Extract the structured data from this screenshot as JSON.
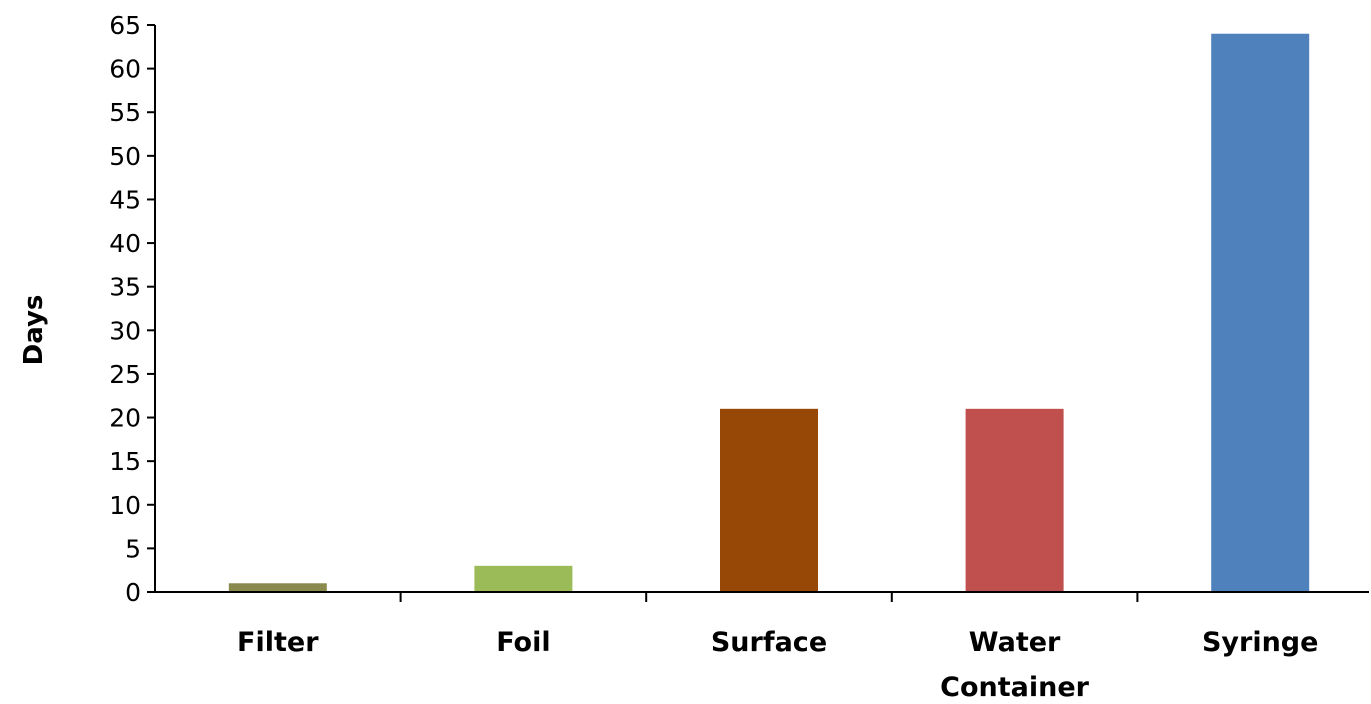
{
  "chart_data": {
    "type": "bar",
    "title": "",
    "xlabel": "",
    "ylabel": "Days",
    "categories": [
      "Filter",
      "Foil",
      "Surface",
      "Water Container",
      "Syringe"
    ],
    "category_lines": [
      [
        "Filter"
      ],
      [
        "Foil"
      ],
      [
        "Surface"
      ],
      [
        "Water",
        "Container"
      ],
      [
        "Syringe"
      ]
    ],
    "values": [
      1,
      3,
      21,
      21,
      64
    ],
    "colors": [
      "#8B8A4E",
      "#9BBB59",
      "#974806",
      "#C0504D",
      "#4F81BD"
    ],
    "ylim": [
      0,
      65
    ],
    "yticks": [
      0,
      5,
      10,
      15,
      20,
      25,
      30,
      35,
      40,
      45,
      50,
      55,
      60,
      65
    ],
    "grid": false,
    "legend": "none"
  }
}
